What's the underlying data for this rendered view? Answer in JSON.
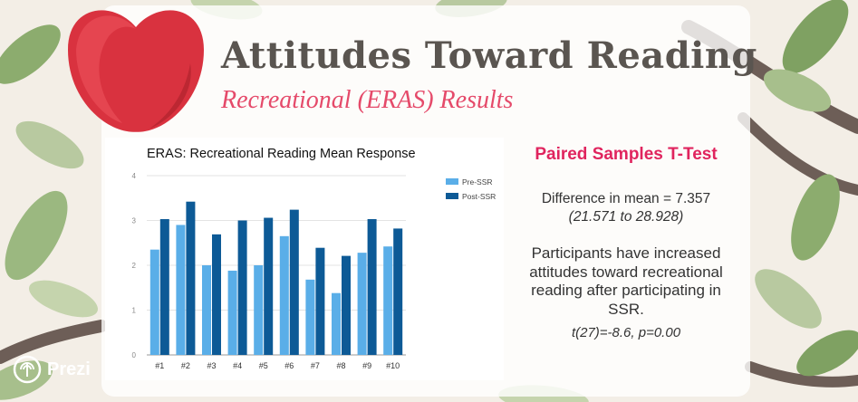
{
  "slide": {
    "title": "Attitudes Toward Reading",
    "subtitle": "Recreational (ERAS) Results"
  },
  "colors": {
    "title": "#5a5550",
    "subtitle": "#e54a6a",
    "heading": "#e0245e",
    "pre_series": "#5aaee8",
    "post_series": "#0d5a96"
  },
  "right_panel": {
    "heading": "Paired Samples T-Test",
    "difference": "Difference in mean = 7.357",
    "confidence_interval": "(21.571 to 28.928)",
    "conclusion": "Participants have increased attitudes toward recreational reading after participating in SSR.",
    "stats": "t(27)=-8.6, p=0.00"
  },
  "branding": {
    "logo_text": "Prezi"
  },
  "chart_data": {
    "type": "bar",
    "title": "ERAS: Recreational Reading Mean Response",
    "categories": [
      "#1",
      "#2",
      "#3",
      "#4",
      "#5",
      "#6",
      "#7",
      "#8",
      "#9",
      "#10"
    ],
    "series": [
      {
        "name": "Pre-SSR",
        "values": [
          2.35,
          2.9,
          2.0,
          1.88,
          2.0,
          2.65,
          1.68,
          1.38,
          2.28,
          2.42
        ]
      },
      {
        "name": "Post-SSR",
        "values": [
          3.03,
          3.42,
          2.69,
          3.0,
          3.06,
          3.24,
          2.39,
          2.21,
          3.03,
          2.82
        ]
      }
    ],
    "xlabel": "",
    "ylabel": "",
    "ylim": [
      0,
      4
    ],
    "yticks": [
      "0",
      "1",
      "2",
      "3",
      "4"
    ],
    "grid": true,
    "legend": "right"
  }
}
